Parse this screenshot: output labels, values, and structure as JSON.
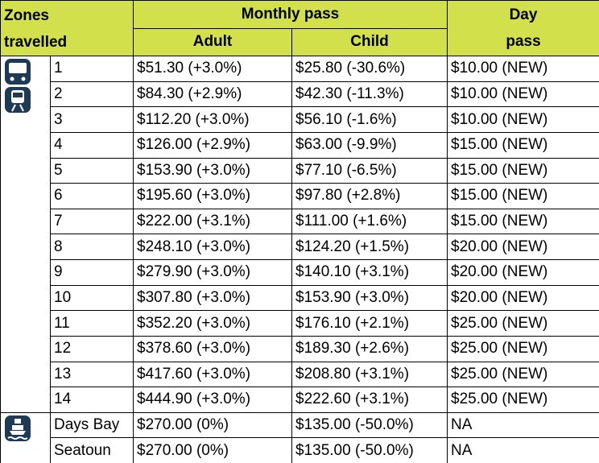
{
  "header": {
    "zones": "Zones travelled",
    "monthly": "Monthly pass",
    "adult": "Adult",
    "child": "Child",
    "day": "Day pass"
  },
  "table": {
    "rows": [
      [
        "1",
        "$51.30 (+3.0%)",
        "$25.80 (-30.6%)",
        "$10.00 (NEW)"
      ],
      [
        "2",
        "$84.30 (+2.9%)",
        "$42.30 (-11.3%)",
        "$10.00 (NEW)"
      ],
      [
        "3",
        "$112.20 (+3.0%)",
        "$56.10 (-1.6%)",
        "$10.00 (NEW)"
      ],
      [
        "4",
        "$126.00 (+2.9%)",
        "$63.00 (-9.9%)",
        "$15.00 (NEW)"
      ],
      [
        "5",
        "$153.90 (+3.0%)",
        "$77.10 (-6.5%)",
        "$15.00 (NEW)"
      ],
      [
        "6",
        "$195.60 (+3.0%)",
        "$97.80 (+2.8%)",
        "$15.00 (NEW)"
      ],
      [
        "7",
        "$222.00 (+3.1%)",
        "$111.00 (+1.6%)",
        "$15.00 (NEW)"
      ],
      [
        "8",
        "$248.10 (+3.0%)",
        "$124.20 (+1.5%)",
        "$20.00 (NEW)"
      ],
      [
        "9",
        "$279.90 (+3.0%)",
        "$140.10 (+3.1%)",
        "$20.00 (NEW)"
      ],
      [
        "10",
        "$307.80 (+3.0%)",
        "$153.90 (+3.0%)",
        "$20.00 (NEW)"
      ],
      [
        "11",
        "$352.20 (+3.0%)",
        "$176.10 (+2.1%)",
        "$25.00 (NEW)"
      ],
      [
        "12",
        "$378.60 (+3.0%)",
        "$189.30 (+2.6%)",
        "$25.00 (NEW)"
      ],
      [
        "13",
        "$417.60 (+3.0%)",
        "$208.80 (+3.1%)",
        "$25.00 (NEW)"
      ],
      [
        "14",
        "$444.90 (+3.0%)",
        "$222.60 (+3.1%)",
        "$25.00 (NEW)"
      ],
      [
        "Days Bay",
        "$270.00 (0%)",
        "$135.00 (-50.0%)",
        "NA"
      ],
      [
        "Seatoun",
        "$270.00 (0%)",
        "$135.00 (-50.0%)",
        "NA"
      ]
    ]
  }
}
